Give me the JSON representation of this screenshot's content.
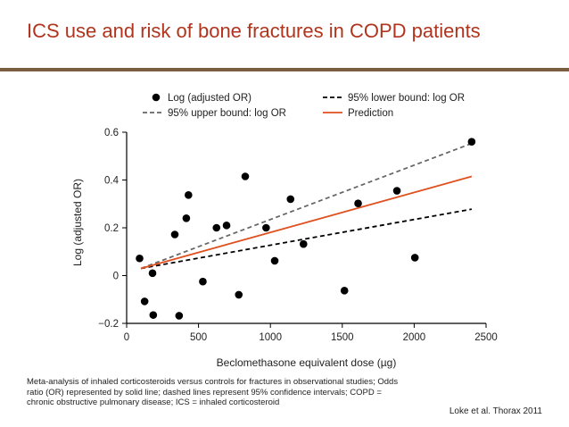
{
  "slide": {
    "title": "ICS use and risk of bone fractures in COPD patients",
    "footnote": "Meta-analysis of inhaled corticosteroids versus controls for fractures in observational studies; Odds ratio (OR) represented by solid line; dashed lines represent 95% confidence intervals; COPD = chronic obstructive pulmonary disease; ICS = inhaled corticosteroid",
    "citation": "Loke et al. Thorax 2011"
  },
  "colors": {
    "title": "#b0341e",
    "rule": "#7b5e3f",
    "points": "#000000",
    "lower_bound": "#000000",
    "upper_bound": "#666666",
    "prediction": "#e0501e"
  },
  "chart_data": {
    "type": "scatter",
    "xlabel": "Beclomethasone equivalent dose (µg)",
    "ylabel": "Log (adjusted OR)",
    "xlim": [
      0,
      2500
    ],
    "ylim": [
      -0.2,
      0.6
    ],
    "x_ticks": [
      0,
      500,
      1000,
      1500,
      2000,
      2500
    ],
    "x_tick_labels": [
      "0",
      "500",
      "1000",
      "1500",
      "2000",
      "2500"
    ],
    "y_ticks": [
      -0.2,
      0,
      0.2,
      0.4,
      0.6
    ],
    "y_tick_labels": [
      "−0.2",
      "0",
      "0.2",
      "0.4",
      "0.6"
    ],
    "grid": false,
    "legend_position": "top",
    "series": [
      {
        "name": "Log (adjusted OR)",
        "kind": "points",
        "points": [
          [
            90,
            0.072
          ],
          [
            125,
            -0.108
          ],
          [
            180,
            0.01
          ],
          [
            185,
            -0.165
          ],
          [
            335,
            0.172
          ],
          [
            365,
            -0.168
          ],
          [
            415,
            0.24
          ],
          [
            430,
            0.337
          ],
          [
            530,
            -0.025
          ],
          [
            625,
            0.2
          ],
          [
            695,
            0.21
          ],
          [
            780,
            -0.08
          ],
          [
            825,
            0.415
          ],
          [
            970,
            0.2
          ],
          [
            1030,
            0.062
          ],
          [
            1140,
            0.32
          ],
          [
            1230,
            0.132
          ],
          [
            1515,
            -0.063
          ],
          [
            1610,
            0.302
          ],
          [
            1880,
            0.355
          ],
          [
            2005,
            0.075
          ],
          [
            2400,
            0.56
          ]
        ]
      },
      {
        "name": "95% lower bound: log OR",
        "kind": "dashed-line",
        "points": [
          [
            100,
            0.03
          ],
          [
            2400,
            0.278
          ]
        ]
      },
      {
        "name": "95% upper bound: log OR",
        "kind": "dashed-line",
        "points": [
          [
            100,
            0.03
          ],
          [
            2400,
            0.553
          ]
        ]
      },
      {
        "name": "Prediction",
        "kind": "line",
        "points": [
          [
            100,
            0.03
          ],
          [
            2400,
            0.415
          ]
        ]
      }
    ]
  }
}
